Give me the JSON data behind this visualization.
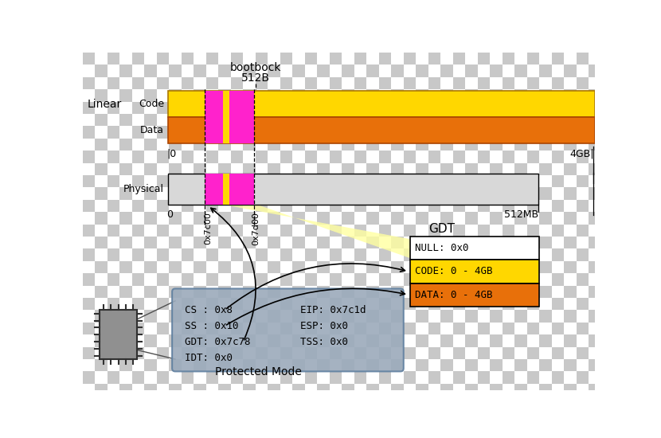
{
  "title_line1": "bootbock",
  "title_line2": "512B",
  "linear_label": "Linear",
  "physical_label": "Physical",
  "protected_mode_label": "Protected Mode",
  "code_label": "Code",
  "data_label": "Data",
  "code_color": "#FFD700",
  "data_color": "#E8700A",
  "magenta_color": "#FF22CC",
  "yellow_stripe_color": "#FFD700",
  "physical_bar_color": "#D8D8D8",
  "linear_0_label": "|0",
  "linear_4gb_label": "4GB|",
  "physical_0_label": "0",
  "physical_512mb_label": "512MB",
  "addr_7c00": "0x7c00",
  "addr_7d00": "0x7d00",
  "gdt_label": "GDT",
  "gdt_null": "NULL: 0x0",
  "gdt_code": "CODE: 0 - 4GB",
  "gdt_data": "DATA: 0 - 4GB",
  "cpu_regs_left": [
    "CS : 0x8",
    "SS : 0x10",
    "GDT: 0x7c78",
    "IDT: 0x0"
  ],
  "cpu_regs_right": [
    "EIP: 0x7c1d",
    "ESP: 0x0",
    "TSS: 0x0"
  ],
  "checker_dark": "#C8C8C8",
  "checker_light": "#FFFFFF"
}
